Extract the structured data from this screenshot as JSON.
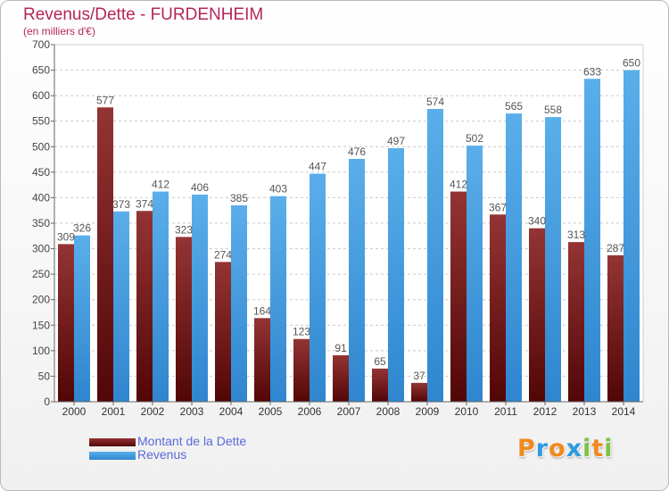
{
  "chart_data": {
    "type": "bar",
    "title": "Revenus/Dette - FURDENHEIM",
    "subtitle": "(en milliers d'€)",
    "categories": [
      "2000",
      "2001",
      "2002",
      "2003",
      "2004",
      "2005",
      "2006",
      "2007",
      "2008",
      "2009",
      "2010",
      "2011",
      "2012",
      "2013",
      "2014"
    ],
    "series": [
      {
        "name": "Montant de la Dette",
        "color": "#7b1f1f",
        "values": [
          309,
          577,
          374,
          323,
          274,
          164,
          123,
          91,
          65,
          37,
          412,
          367,
          340,
          313,
          287
        ]
      },
      {
        "name": "Revenus",
        "color": "#4ea6e6",
        "values": [
          326,
          373,
          412,
          406,
          385,
          403,
          447,
          476,
          497,
          574,
          502,
          565,
          558,
          633,
          650
        ]
      }
    ],
    "ylim": [
      0,
      700
    ],
    "yticks": [
      0,
      50,
      100,
      150,
      200,
      250,
      300,
      350,
      400,
      450,
      500,
      550,
      600,
      650,
      700
    ],
    "grid": true,
    "legend_position": "bottom-left"
  },
  "logo": {
    "letters": [
      "P",
      "r",
      "o",
      "x",
      "i",
      "t",
      "i"
    ],
    "colors": [
      "#f08a1c",
      "#2e9be0",
      "#f08a1c",
      "#2e9be0",
      "#7dc241",
      "#f08a1c",
      "#7dc241"
    ]
  }
}
